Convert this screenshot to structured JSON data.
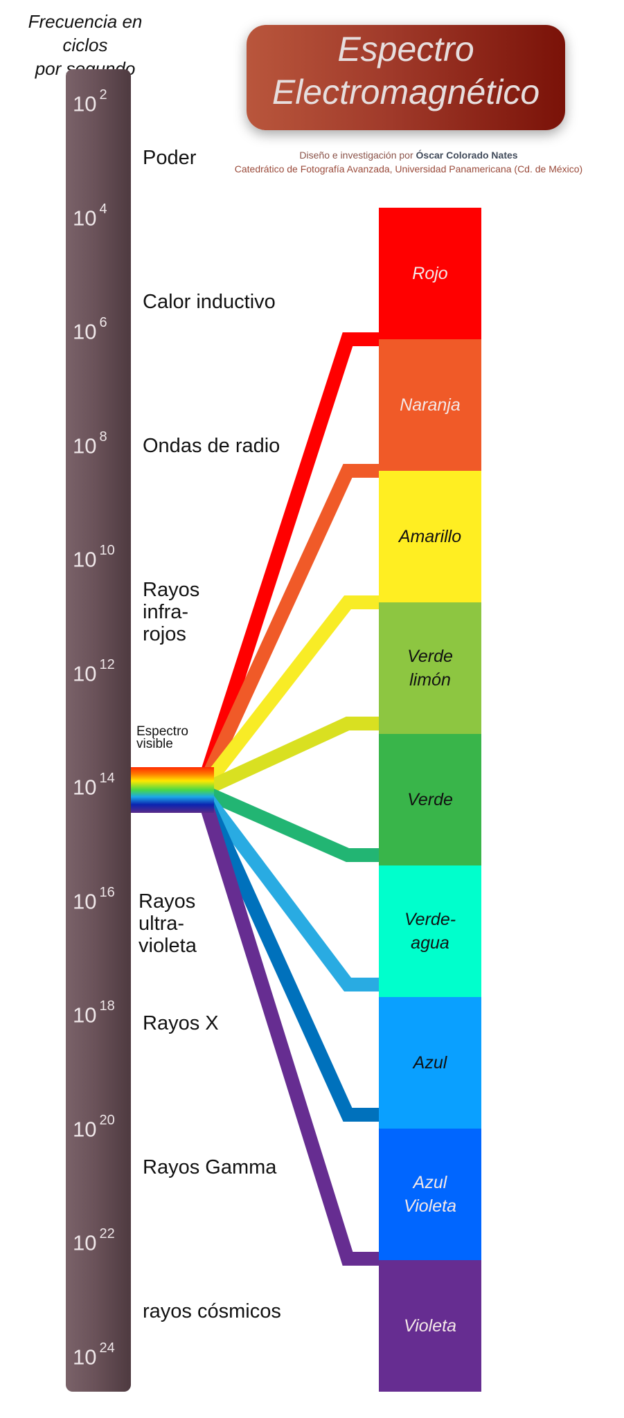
{
  "header": {
    "frequency_title": "Frecuencia en ciclos\npor segundo",
    "title_line1": "Espectro",
    "title_line2": "Electromagnético",
    "credit_prefix": "Diseño e investigación por ",
    "credit_author": "Óscar Colorado Nates",
    "credit_line2": "Catedrático de Fotografía Avanzada, Universidad Panamericana (Cd. de México)"
  },
  "exponents": [
    {
      "base": "10",
      "power": "2"
    },
    {
      "base": "10",
      "power": "4"
    },
    {
      "base": "10",
      "power": "6"
    },
    {
      "base": "10",
      "power": "8"
    },
    {
      "base": "10",
      "power": "10"
    },
    {
      "base": "10",
      "power": "12"
    },
    {
      "base": "10",
      "power": "14"
    },
    {
      "base": "10",
      "power": "16"
    },
    {
      "base": "10",
      "power": "18"
    },
    {
      "base": "10",
      "power": "20"
    },
    {
      "base": "10",
      "power": "22"
    },
    {
      "base": "10",
      "power": "24"
    }
  ],
  "bands": [
    "Poder",
    "Calor inductivo",
    "Ondas de radio",
    "Rayos\ninfra-\nrojos",
    "Rayos\nultra-\nvioleta",
    "Rayos X",
    "Rayos Gamma",
    "rayos cósmicos"
  ],
  "visible_label": "Espectro\nvisible",
  "colors": [
    {
      "label": "Rojo",
      "color": "#ff0000",
      "text_color": "#f4e8e8"
    },
    {
      "label": "Naranja",
      "color": "#f05a28",
      "text_color": "#f4e8e8"
    },
    {
      "label": "Amarillo",
      "color": "#ffee22",
      "text_color": "#111111"
    },
    {
      "label": "Verde\nlimón",
      "color": "#8dc641",
      "text_color": "#111111"
    },
    {
      "label": "Verde",
      "color": "#39b54a",
      "text_color": "#111111"
    },
    {
      "label": "Verde-\nagua",
      "color": "#00ffcc",
      "text_color": "#111111"
    },
    {
      "label": "Azul",
      "color": "#0aa0ff",
      "text_color": "#111111"
    },
    {
      "label": "Azul\nVioleta",
      "color": "#0066ff",
      "text_color": "#f4e8e8"
    },
    {
      "label": "Violeta",
      "color": "#662d91",
      "text_color": "#f4e8e8"
    }
  ],
  "connector_colors": [
    "#ff0000",
    "#f05a28",
    "#f8ec26",
    "#d9e021",
    "#22b573",
    "#29abe2",
    "#0071bc",
    "#662d91"
  ]
}
